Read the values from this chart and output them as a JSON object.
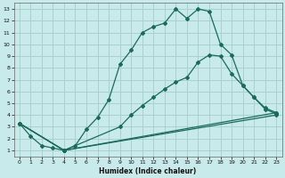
{
  "xlabel": "Humidex (Indice chaleur)",
  "bg_color": "#c8eaea",
  "grid_color": "#aad0d0",
  "line_color": "#1a6b5a",
  "xlim": [
    -0.5,
    23.5
  ],
  "ylim": [
    0.5,
    13.5
  ],
  "xticks": [
    0,
    1,
    2,
    3,
    4,
    5,
    6,
    7,
    8,
    9,
    10,
    11,
    12,
    13,
    14,
    15,
    16,
    17,
    18,
    19,
    20,
    21,
    22,
    23
  ],
  "yticks": [
    1,
    2,
    3,
    4,
    5,
    6,
    7,
    8,
    9,
    10,
    11,
    12,
    13
  ],
  "series1_x": [
    0,
    1,
    2,
    3,
    4,
    5,
    6,
    7,
    8,
    9,
    10,
    11,
    12,
    13,
    14,
    15,
    16,
    17,
    18,
    19,
    20,
    21,
    22,
    23
  ],
  "series1_y": [
    3.3,
    2.2,
    1.4,
    1.2,
    1.0,
    1.4,
    2.8,
    3.8,
    5.3,
    8.3,
    9.5,
    11.0,
    11.5,
    11.8,
    13.0,
    12.2,
    13.0,
    12.8,
    10.0,
    9.1,
    6.5,
    5.5,
    4.5,
    4.1
  ],
  "series2_x": [
    0,
    4,
    9,
    10,
    11,
    12,
    13,
    14,
    15,
    16,
    17,
    18,
    19,
    20,
    21,
    22,
    23
  ],
  "series2_y": [
    3.3,
    1.0,
    3.0,
    4.0,
    4.8,
    5.5,
    6.2,
    6.8,
    7.2,
    8.5,
    9.1,
    9.0,
    7.5,
    6.5,
    5.5,
    4.6,
    4.2
  ],
  "series3_x": [
    0,
    4,
    23
  ],
  "series3_y": [
    3.3,
    1.0,
    4.2
  ],
  "series4_x": [
    0,
    4,
    23
  ],
  "series4_y": [
    3.3,
    1.0,
    4.0
  ]
}
